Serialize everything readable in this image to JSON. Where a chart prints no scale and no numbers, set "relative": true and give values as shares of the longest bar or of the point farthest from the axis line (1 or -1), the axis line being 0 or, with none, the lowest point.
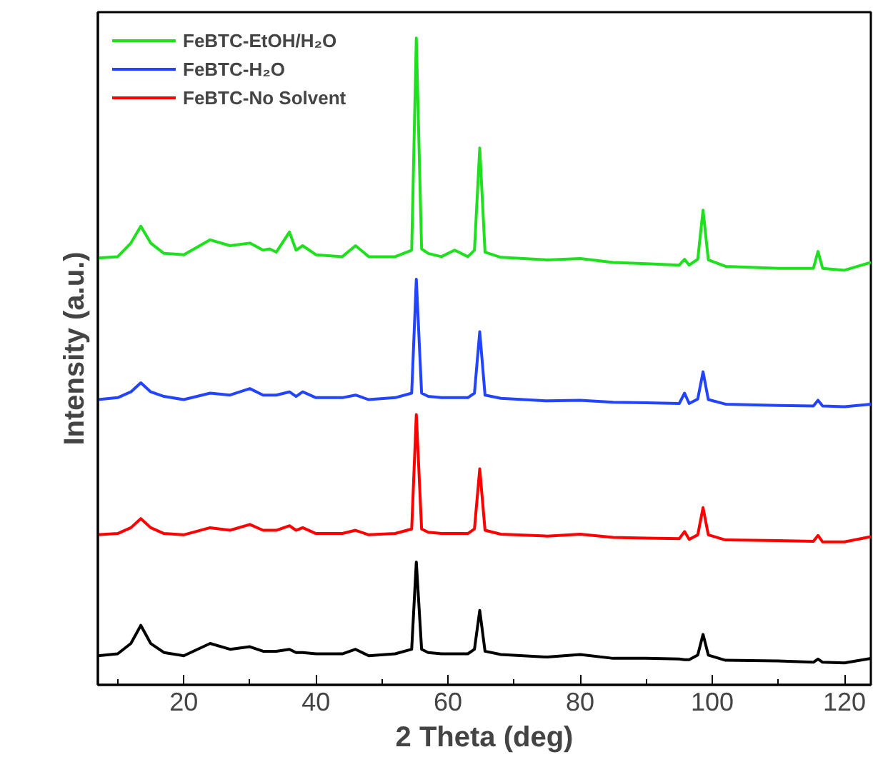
{
  "chart_data": {
    "type": "line",
    "xlabel": "2 Theta (deg)",
    "ylabel": "Intensity (a.u.)",
    "relative": true,
    "x": [
      7,
      10,
      12,
      13.5,
      15,
      17,
      20,
      24,
      27,
      30,
      32,
      33,
      34,
      36,
      37,
      38,
      40,
      44,
      46,
      48,
      52,
      54.5,
      55.2,
      56,
      57,
      59,
      61,
      63,
      64,
      64.8,
      65.6,
      68,
      75,
      80,
      85,
      90,
      95,
      95.8,
      96.5,
      97.8,
      98.6,
      99.4,
      102,
      110,
      115.3,
      116,
      116.7,
      120,
      124
    ],
    "xlim": [
      7,
      124
    ],
    "xticks": [
      {
        "value": 10,
        "label": null
      },
      20,
      {
        "value": 30,
        "label": null
      },
      40,
      {
        "value": 50,
        "label": null
      },
      60,
      {
        "value": 70,
        "label": null
      },
      80,
      {
        "value": 90,
        "label": null
      },
      100,
      {
        "value": 110,
        "label": null
      },
      120
    ],
    "legend": "top left",
    "grid": false,
    "marker": "none",
    "line_style": "solid",
    "series": [
      {
        "name": "FeBTC-EtOH/H₂O",
        "color": "#1fe01f",
        "values": [
          0.66,
          0.662,
          0.683,
          0.709,
          0.683,
          0.667,
          0.665,
          0.688,
          0.679,
          0.683,
          0.672,
          0.674,
          0.669,
          0.7,
          0.672,
          0.679,
          0.665,
          0.662,
          0.679,
          0.662,
          0.662,
          0.672,
          1.0,
          0.674,
          0.667,
          0.662,
          0.672,
          0.662,
          0.672,
          0.83,
          0.669,
          0.661,
          0.657,
          0.659,
          0.653,
          0.651,
          0.649,
          0.658,
          0.649,
          0.658,
          0.734,
          0.657,
          0.647,
          0.644,
          0.644,
          0.67,
          0.644,
          0.641,
          0.653
        ]
      },
      {
        "name": "FeBTC-H₂O",
        "color": "#2244ff",
        "values": [
          0.441,
          0.444,
          0.453,
          0.467,
          0.453,
          0.446,
          0.441,
          0.451,
          0.448,
          0.458,
          0.448,
          0.448,
          0.448,
          0.453,
          0.446,
          0.453,
          0.444,
          0.444,
          0.448,
          0.441,
          0.444,
          0.451,
          0.627,
          0.451,
          0.446,
          0.444,
          0.444,
          0.444,
          0.451,
          0.546,
          0.448,
          0.443,
          0.439,
          0.44,
          0.437,
          0.436,
          0.435,
          0.451,
          0.435,
          0.442,
          0.484,
          0.441,
          0.434,
          0.432,
          0.431,
          0.44,
          0.431,
          0.43,
          0.434
        ]
      },
      {
        "name": "FeBTC-No Solvent",
        "color": "#ff0000",
        "values": [
          0.232,
          0.234,
          0.243,
          0.257,
          0.243,
          0.234,
          0.232,
          0.243,
          0.239,
          0.248,
          0.239,
          0.239,
          0.239,
          0.246,
          0.239,
          0.243,
          0.234,
          0.234,
          0.239,
          0.232,
          0.234,
          0.241,
          0.418,
          0.241,
          0.236,
          0.234,
          0.234,
          0.234,
          0.241,
          0.334,
          0.239,
          0.233,
          0.23,
          0.233,
          0.228,
          0.227,
          0.226,
          0.237,
          0.225,
          0.232,
          0.274,
          0.232,
          0.224,
          0.223,
          0.222,
          0.231,
          0.221,
          0.221,
          0.229
        ]
      },
      {
        "color": "#000000",
        "values": [
          0.045,
          0.048,
          0.064,
          0.092,
          0.064,
          0.05,
          0.045,
          0.064,
          0.055,
          0.059,
          0.052,
          0.052,
          0.052,
          0.055,
          0.05,
          0.05,
          0.048,
          0.048,
          0.055,
          0.045,
          0.048,
          0.055,
          0.19,
          0.055,
          0.05,
          0.048,
          0.048,
          0.048,
          0.055,
          0.115,
          0.052,
          0.047,
          0.043,
          0.047,
          0.041,
          0.041,
          0.04,
          0.039,
          0.039,
          0.046,
          0.078,
          0.046,
          0.038,
          0.037,
          0.035,
          0.04,
          0.035,
          0.034,
          0.041
        ]
      }
    ]
  }
}
